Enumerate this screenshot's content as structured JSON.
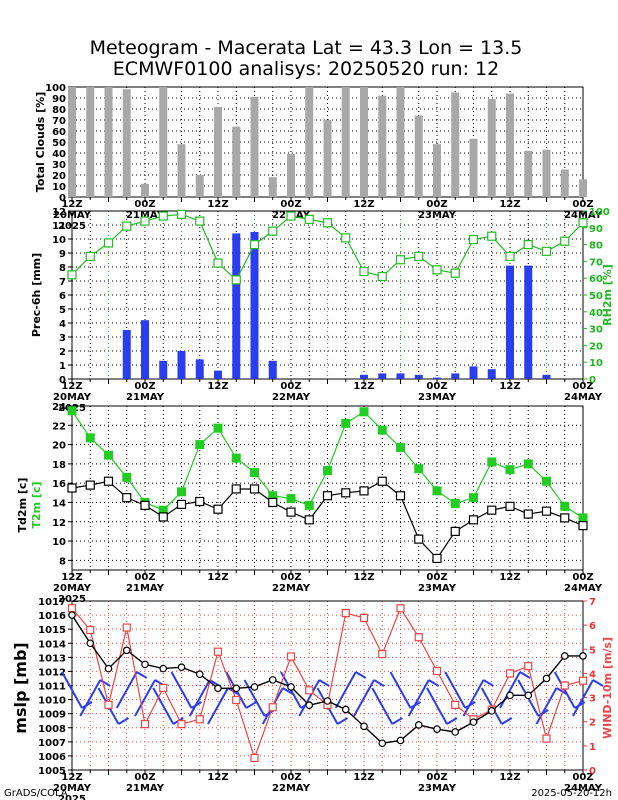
{
  "title": {
    "line1": "Meteogram - Macerata Lat = 43.3 Lon = 13.5",
    "line2": "ECMWF0100 analisys: 20250520 run: 12"
  },
  "footer": {
    "left": "GrADS/COLA",
    "right": "2025-05-20-12h"
  },
  "colors": {
    "cloud_bar": "#a8a8a8",
    "prec_bar": "#2a3ef0",
    "rh": "#22bb22",
    "t2m": "#22cc22",
    "td2m": "#000000",
    "mslp": "#000000",
    "wind": "#ee4444",
    "barb": "#2a3ef0"
  },
  "chart_data": [
    {
      "type": "bar",
      "name": "clouds",
      "ylabel": "Total Clouds [%]",
      "ylim": [
        0,
        100
      ],
      "yticks": [
        "0",
        "10",
        "20",
        "30",
        "40",
        "50",
        "60",
        "70",
        "80",
        "90",
        "100"
      ],
      "x": [
        0,
        1,
        2,
        3,
        4,
        5,
        6,
        7,
        8,
        9,
        10,
        11,
        12,
        13,
        14,
        15,
        16,
        17,
        18,
        19,
        20,
        21,
        22,
        23,
        24,
        25,
        26,
        27,
        28
      ],
      "values": [
        100,
        100,
        100,
        98,
        12,
        100,
        48,
        20,
        82,
        64,
        91,
        18,
        39,
        100,
        70,
        100,
        100,
        92,
        100,
        74,
        48,
        95,
        53,
        89,
        94,
        42,
        43,
        25,
        16
      ],
      "grid": true
    },
    {
      "type": "bar",
      "name": "precipitation_rh",
      "ylabel": "Prec-6h [mm]",
      "ylabel2": "RH2m [%]",
      "ylim": [
        0,
        12
      ],
      "ylim2": [
        0,
        100
      ],
      "yticks": [
        "0",
        "1",
        "2",
        "3",
        "4",
        "5",
        "6",
        "7",
        "8",
        "9",
        "10",
        "11",
        "12"
      ],
      "yticks2": [
        "0",
        "10",
        "20",
        "30",
        "40",
        "50",
        "60",
        "70",
        "80",
        "90",
        "100"
      ],
      "x": [
        0,
        1,
        2,
        3,
        4,
        5,
        6,
        7,
        8,
        9,
        10,
        11,
        12,
        13,
        14,
        15,
        16,
        17,
        18,
        19,
        20,
        21,
        22,
        23,
        24,
        25,
        26,
        27,
        28
      ],
      "values": [
        0,
        0,
        0,
        3.5,
        4.2,
        1.3,
        2.0,
        1.4,
        0.6,
        10.4,
        10.5,
        1.3,
        0,
        0,
        0,
        0,
        0.3,
        0.4,
        0.4,
        0.3,
        0.1,
        0.4,
        0.9,
        0.7,
        8.1,
        8.1,
        0.3,
        0,
        0
      ],
      "rh": [
        62,
        73,
        81,
        91,
        94,
        97,
        98,
        94,
        69,
        59,
        80,
        88,
        97,
        95,
        93,
        84,
        64,
        61,
        71,
        73,
        65,
        63,
        83,
        85,
        73,
        80,
        76,
        82,
        93
      ],
      "grid": true
    },
    {
      "type": "line",
      "name": "temperature",
      "ylabel": "Td2m [c]",
      "ylabel2": "T2m [c]",
      "ylim": [
        7,
        24
      ],
      "yticks": [
        "8",
        "10",
        "12",
        "14",
        "16",
        "18",
        "20",
        "22",
        "24"
      ],
      "x": [
        0,
        1,
        2,
        3,
        4,
        5,
        6,
        7,
        8,
        9,
        10,
        11,
        12,
        13,
        14,
        15,
        16,
        17,
        18,
        19,
        20,
        21,
        22,
        23,
        24,
        25,
        26,
        27,
        28
      ],
      "series": [
        {
          "key": "t2m",
          "values": [
            23.5,
            20.7,
            18.9,
            16.6,
            14.0,
            13.2,
            15.1,
            20.0,
            21.7,
            18.6,
            17.1,
            14.7,
            14.4,
            13.7,
            17.3,
            22.2,
            23.4,
            21.5,
            19.7,
            17.5,
            15.2,
            13.9,
            14.5,
            18.2,
            17.4,
            18.0,
            16.2,
            13.6,
            12.4
          ]
        },
        {
          "key": "td2m",
          "values": [
            15.5,
            15.8,
            16.2,
            14.5,
            13.7,
            12.5,
            13.8,
            14.1,
            13.3,
            15.4,
            15.4,
            14.0,
            13.0,
            12.2,
            14.7,
            15.0,
            15.2,
            16.2,
            14.7,
            10.2,
            8.2,
            11.0,
            12.2,
            13.2,
            13.6,
            12.8,
            13.1,
            12.4,
            11.6
          ]
        }
      ],
      "grid": true
    },
    {
      "type": "line",
      "name": "pressure_wind",
      "ylabel": "mslp [mb]",
      "ylabel2": "WIND-10m [m/s]",
      "ylim": [
        1005,
        1017
      ],
      "ylim2": [
        0,
        7
      ],
      "yticks": [
        "1005",
        "1006",
        "1007",
        "1008",
        "1009",
        "1010",
        "1011",
        "1012",
        "1013",
        "1014",
        "1015",
        "1016",
        "1017"
      ],
      "yticks2": [
        "0",
        "1",
        "2",
        "3",
        "4",
        "5",
        "6",
        "7"
      ],
      "x": [
        0,
        1,
        2,
        3,
        4,
        5,
        6,
        7,
        8,
        9,
        10,
        11,
        12,
        13,
        14,
        15,
        16,
        17,
        18,
        19,
        20,
        21,
        22,
        23,
        24,
        25,
        26,
        27,
        28
      ],
      "series": [
        {
          "key": "mslp",
          "values": [
            1016,
            1014,
            1012.2,
            1013.5,
            1012.5,
            1012.2,
            1012.3,
            1011.8,
            1010.8,
            1010.8,
            1010.9,
            1011.4,
            1010.9,
            1009.6,
            1009.9,
            1009.3,
            1008.1,
            1006.9,
            1007.1,
            1008.2,
            1007.9,
            1007.7,
            1008.4,
            1009.2,
            1010.3,
            1010.3,
            1011.5,
            1013.1,
            1013.1
          ]
        },
        {
          "key": "wind",
          "values": [
            6.7,
            5.8,
            2.7,
            5.9,
            1.9,
            3.4,
            1.9,
            2.1,
            4.9,
            2.9,
            0.5,
            2.6,
            4.7,
            3.3,
            2.7,
            6.5,
            6.3,
            4.8,
            6.7,
            5.5,
            4.1,
            2.7,
            2.1,
            2.5,
            4,
            4.3,
            1.3,
            3.5,
            3.7
          ]
        }
      ],
      "grid": true
    }
  ],
  "time_axis": {
    "ticks": [
      {
        "hour": "12Z",
        "date": "20MAY",
        "year": "2025"
      },
      {
        "hour": "00Z",
        "date": "21MAY",
        "year": ""
      },
      {
        "hour": "12Z",
        "date": "",
        "year": ""
      },
      {
        "hour": "00Z",
        "date": "22MAY",
        "year": ""
      },
      {
        "hour": "12Z",
        "date": "",
        "year": ""
      },
      {
        "hour": "00Z",
        "date": "23MAY",
        "year": ""
      },
      {
        "hour": "12Z",
        "date": "",
        "year": ""
      },
      {
        "hour": "00Z",
        "date": "24MAY",
        "year": ""
      }
    ]
  }
}
